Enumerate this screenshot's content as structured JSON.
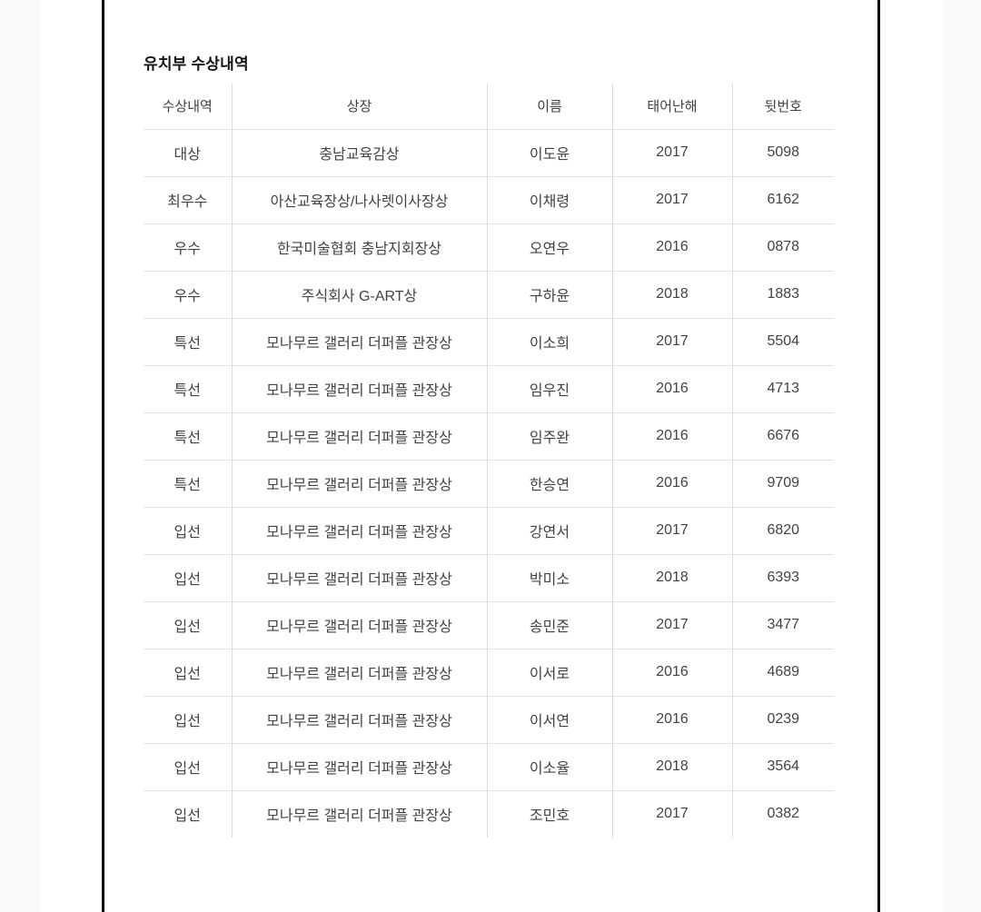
{
  "page": {
    "title": "유치부 수상내역"
  },
  "table": {
    "columns": [
      "수상내역",
      "상장",
      "이름",
      "태어난해",
      "뒷번호"
    ],
    "rows": [
      [
        "대상",
        "충남교육감상",
        "이도윤",
        "2017",
        "5098"
      ],
      [
        "최우수",
        "아산교육장상/나사렛이사장상",
        "이채령",
        "2017",
        "6162"
      ],
      [
        "우수",
        "한국미술협회 충남지회장상",
        "오연우",
        "2016",
        "0878"
      ],
      [
        "우수",
        "주식회사 G-ART상",
        "구하윤",
        "2018",
        "1883"
      ],
      [
        "특선",
        "모나무르 갤러리 더퍼플 관장상",
        "이소희",
        "2017",
        "5504"
      ],
      [
        "특선",
        "모나무르 갤러리 더퍼플 관장상",
        "임우진",
        "2016",
        "4713"
      ],
      [
        "특선",
        "모나무르 갤러리 더퍼플 관장상",
        "임주완",
        "2016",
        "6676"
      ],
      [
        "특선",
        "모나무르 갤러리 더퍼플 관장상",
        "한승연",
        "2016",
        "9709"
      ],
      [
        "입선",
        "모나무르 갤러리 더퍼플 관장상",
        "강연서",
        "2017",
        "6820"
      ],
      [
        "입선",
        "모나무르 갤러리 더퍼플 관장상",
        "박미소",
        "2018",
        "6393"
      ],
      [
        "입선",
        "모나무르 갤러리 더퍼플 관장상",
        "송민준",
        "2017",
        "3477"
      ],
      [
        "입선",
        "모나무르 갤러리 더퍼플 관장상",
        "이서로",
        "2016",
        "4689"
      ],
      [
        "입선",
        "모나무르 갤러리 더퍼플 관장상",
        "이서연",
        "2016",
        "0239"
      ],
      [
        "입선",
        "모나무르 갤러리 더퍼플 관장상",
        "이소율",
        "2018",
        "3564"
      ],
      [
        "입선",
        "모나무르 갤러리 더퍼플 관장상",
        "조민호",
        "2017",
        "0382"
      ]
    ]
  },
  "colors": {
    "vertical_rule": "#000000",
    "grid_line": "#e0e0e0",
    "column_line": "#dcdcdc",
    "body_text": "#424242",
    "title_text": "#141414",
    "edge_strip": "#fafafa"
  }
}
